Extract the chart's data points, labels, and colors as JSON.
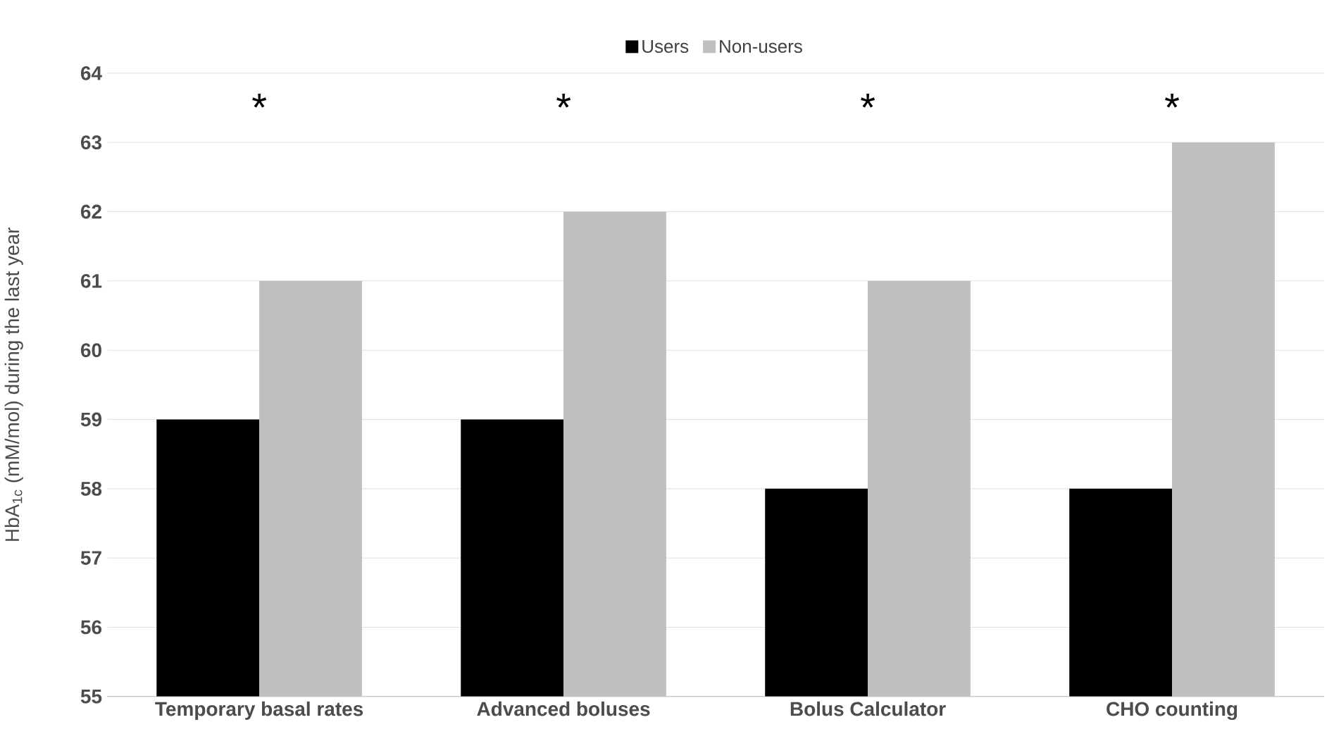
{
  "chart_data": {
    "type": "bar",
    "ylabel": "HbA$_{1c}$ (mM/mol) during the last year",
    "categories": [
      "Temporary basal rates",
      "Advanced boluses",
      "Bolus Calculator",
      "CHO counting"
    ],
    "series": [
      {
        "name": "Users",
        "color": "#000000",
        "values": [
          59,
          59,
          58,
          58
        ]
      },
      {
        "name": "Non-users",
        "color": "#bfbfbf",
        "values": [
          61,
          62,
          61,
          63
        ]
      }
    ],
    "ylim": [
      55,
      64
    ],
    "yticks": [
      55,
      56,
      57,
      58,
      59,
      60,
      61,
      62,
      63,
      64
    ],
    "grid": "y",
    "legend": "top",
    "annotations": [
      "*",
      "*",
      "*",
      "*"
    ]
  }
}
